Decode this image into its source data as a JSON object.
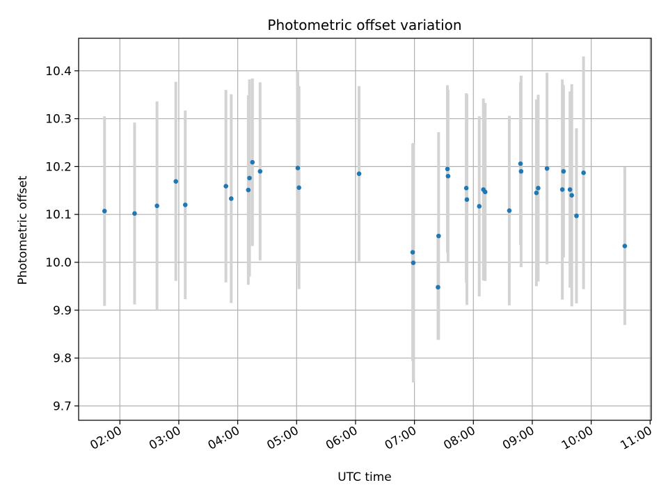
{
  "chart_data": {
    "type": "scatter",
    "title": "Photometric offset variation",
    "xlabel": "UTC time",
    "ylabel": "Photometric offset",
    "x_unit": "hours UTC",
    "xlim": [
      1.3,
      11.02
    ],
    "ylim": [
      9.67,
      10.468
    ],
    "x_ticks": [
      {
        "value": 2,
        "label": "02:00"
      },
      {
        "value": 3,
        "label": "03:00"
      },
      {
        "value": 4,
        "label": "04:00"
      },
      {
        "value": 5,
        "label": "05:00"
      },
      {
        "value": 6,
        "label": "06:00"
      },
      {
        "value": 7,
        "label": "07:00"
      },
      {
        "value": 8,
        "label": "08:00"
      },
      {
        "value": 9,
        "label": "09:00"
      },
      {
        "value": 10,
        "label": "10:00"
      },
      {
        "value": 11,
        "label": "11:00"
      }
    ],
    "y_ticks": [
      {
        "value": 9.7,
        "label": "9.7"
      },
      {
        "value": 9.8,
        "label": "9.8"
      },
      {
        "value": 9.9,
        "label": "9.9"
      },
      {
        "value": 10.0,
        "label": "10.0"
      },
      {
        "value": 10.1,
        "label": "10.1"
      },
      {
        "value": 10.2,
        "label": "10.2"
      },
      {
        "value": 10.3,
        "label": "10.3"
      },
      {
        "value": 10.4,
        "label": "10.4"
      }
    ],
    "grid": true,
    "marker_color": "#1f77b4",
    "errorbar_color": "#d3d3d3",
    "points": [
      {
        "x": 1.74,
        "y": 10.107,
        "err": 0.198
      },
      {
        "x": 2.25,
        "y": 10.102,
        "err": 0.19
      },
      {
        "x": 2.63,
        "y": 10.118,
        "err": 0.218
      },
      {
        "x": 2.95,
        "y": 10.169,
        "err": 0.208
      },
      {
        "x": 3.11,
        "y": 10.12,
        "err": 0.197
      },
      {
        "x": 3.8,
        "y": 10.159,
        "err": 0.201
      },
      {
        "x": 3.89,
        "y": 10.133,
        "err": 0.218
      },
      {
        "x": 4.18,
        "y": 10.151,
        "err": 0.198
      },
      {
        "x": 4.2,
        "y": 10.176,
        "err": 0.206
      },
      {
        "x": 4.25,
        "y": 10.209,
        "err": 0.175
      },
      {
        "x": 4.38,
        "y": 10.19,
        "err": 0.186
      },
      {
        "x": 5.02,
        "y": 10.197,
        "err": 0.201
      },
      {
        "x": 5.04,
        "y": 10.156,
        "err": 0.212
      },
      {
        "x": 6.06,
        "y": 10.185,
        "err": 0.183
      },
      {
        "x": 6.97,
        "y": 10.021,
        "err": 0.227
      },
      {
        "x": 6.98,
        "y": 9.999,
        "err": 0.25
      },
      {
        "x": 7.4,
        "y": 9.948,
        "err": 0.11
      },
      {
        "x": 7.41,
        "y": 10.055,
        "err": 0.217
      },
      {
        "x": 7.56,
        "y": 10.195,
        "err": 0.175
      },
      {
        "x": 7.57,
        "y": 10.18,
        "err": 0.18
      },
      {
        "x": 7.88,
        "y": 10.155,
        "err": 0.198
      },
      {
        "x": 7.89,
        "y": 10.131,
        "err": 0.22
      },
      {
        "x": 8.1,
        "y": 10.117,
        "err": 0.188
      },
      {
        "x": 8.17,
        "y": 10.152,
        "err": 0.19
      },
      {
        "x": 8.2,
        "y": 10.147,
        "err": 0.186
      },
      {
        "x": 8.61,
        "y": 10.108,
        "err": 0.198
      },
      {
        "x": 8.8,
        "y": 10.206,
        "err": 0.17
      },
      {
        "x": 8.81,
        "y": 10.19,
        "err": 0.2
      },
      {
        "x": 9.07,
        "y": 10.145,
        "err": 0.195
      },
      {
        "x": 9.1,
        "y": 10.155,
        "err": 0.195
      },
      {
        "x": 9.25,
        "y": 10.196,
        "err": 0.2
      },
      {
        "x": 9.51,
        "y": 10.152,
        "err": 0.23
      },
      {
        "x": 9.53,
        "y": 10.19,
        "err": 0.18
      },
      {
        "x": 9.64,
        "y": 10.152,
        "err": 0.205
      },
      {
        "x": 9.67,
        "y": 10.14,
        "err": 0.232
      },
      {
        "x": 9.75,
        "y": 10.097,
        "err": 0.183
      },
      {
        "x": 9.87,
        "y": 10.187,
        "err": 0.243
      },
      {
        "x": 10.57,
        "y": 10.034,
        "err": 0.165
      }
    ]
  }
}
